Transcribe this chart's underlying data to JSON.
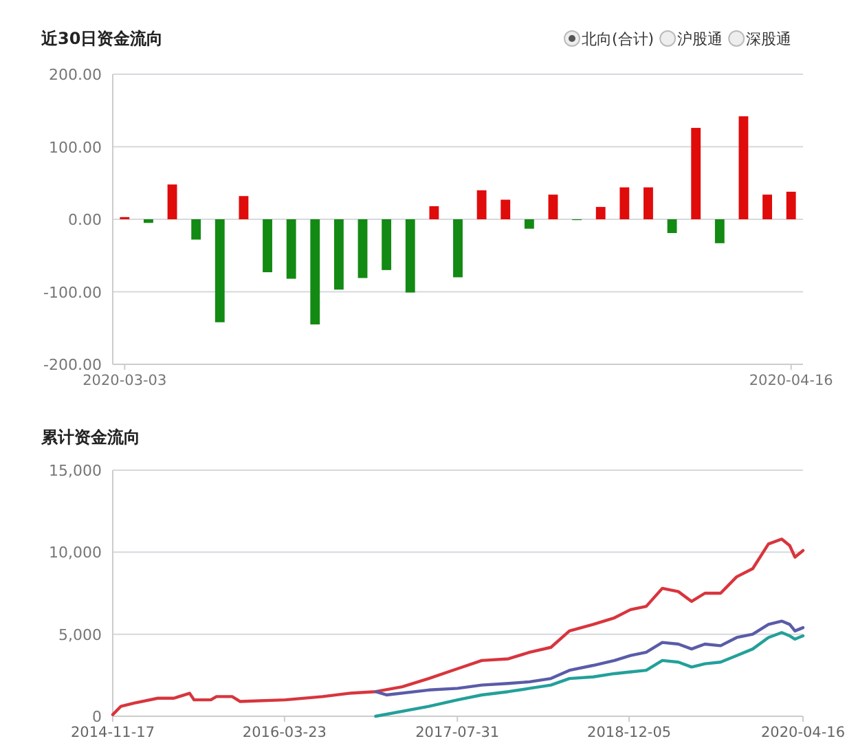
{
  "chart_data": [
    {
      "type": "bar",
      "title": "近30日资金流向",
      "annotations": [
        "北向(合计)",
        "沪股通",
        "深股通"
      ],
      "categories": [
        "2020-03-03",
        null,
        null,
        null,
        null,
        null,
        null,
        null,
        null,
        null,
        null,
        null,
        null,
        null,
        null,
        null,
        null,
        null,
        null,
        null,
        null,
        null,
        null,
        null,
        null,
        null,
        null,
        null,
        "2020-04-16"
      ],
      "values": [
        3,
        -5,
        48,
        -28,
        -142,
        32,
        -73,
        -82,
        -145,
        -97,
        -81,
        -70,
        -101,
        18,
        -80,
        40,
        27,
        -13,
        34,
        -1,
        17,
        44,
        44,
        -19,
        126,
        -33,
        142,
        34,
        38
      ],
      "colors": [
        "#e00b0b",
        "#138a13",
        "#e00b0b",
        "#138a13",
        "#138a13",
        "#e00b0b",
        "#138a13",
        "#138a13",
        "#138a13",
        "#138a13",
        "#138a13",
        "#138a13",
        "#138a13",
        "#e00b0b",
        "#138a13",
        "#e00b0b",
        "#e00b0b",
        "#138a13",
        "#e00b0b",
        "#138a13",
        "#e00b0b",
        "#e00b0b",
        "#e00b0b",
        "#138a13",
        "#e00b0b",
        "#138a13",
        "#e00b0b",
        "#e00b0b",
        "#e00b0b"
      ],
      "ylim": [
        -200,
        200
      ],
      "yticks": [
        {
          "value": 200,
          "label": "200.00"
        },
        {
          "value": 100,
          "label": "100.00"
        },
        {
          "value": 0,
          "label": "0.00"
        },
        {
          "value": -100,
          "label": "-100.00"
        },
        {
          "value": -200,
          "label": "-200.00"
        }
      ],
      "grid": "y"
    },
    {
      "type": "line",
      "title": "累计资金流向",
      "series": [
        {
          "color": "#d8353d",
          "x": [
            "2014-11-17",
            "2014-12-10",
            "2015-01-17",
            "2015-03-26",
            "2015-05-11",
            "2015-06-25",
            "2015-07-08",
            "2015-08-25",
            "2015-09-10",
            "2015-10-25",
            "2015-11-17",
            "2016-03-25",
            "2016-07-10",
            "2016-09-24",
            "2016-12-09",
            "2017-02-23",
            "2017-05-10",
            "2017-08-01",
            "2017-10-09",
            "2017-12-24",
            "2018-02-23",
            "2018-04-25",
            "2018-06-17",
            "2018-08-24",
            "2018-10-24",
            "2018-12-09",
            "2019-01-23",
            "2019-03-10",
            "2019-04-25",
            "2019-06-02",
            "2019-07-10",
            "2019-08-24",
            "2019-10-09",
            "2019-11-24",
            "2020-01-08",
            "2020-02-15",
            "2020-03-09",
            "2020-03-24",
            "2020-04-16"
          ],
          "values": [
            100,
            600,
            800,
            1100,
            1100,
            1400,
            1000,
            1000,
            1200,
            1200,
            900,
            1000,
            1200,
            1400,
            1500,
            1800,
            2300,
            2900,
            3400,
            3500,
            3900,
            4200,
            5200,
            5600,
            6000,
            6500,
            6700,
            7800,
            7600,
            7000,
            7500,
            7500,
            8500,
            9000,
            10500,
            10800,
            10400,
            9700,
            10100
          ]
        },
        {
          "color": "#5a5ca8",
          "x": [
            "2016-12-09",
            "2017-01-09",
            "2017-05-10",
            "2017-08-01",
            "2017-10-09",
            "2017-12-24",
            "2018-02-23",
            "2018-04-25",
            "2018-06-17",
            "2018-08-24",
            "2018-10-24",
            "2018-12-09",
            "2019-01-23",
            "2019-03-10",
            "2019-04-25",
            "2019-06-02",
            "2019-07-10",
            "2019-08-24",
            "2019-10-09",
            "2019-11-24",
            "2020-01-08",
            "2020-02-15",
            "2020-03-09",
            "2020-03-24",
            "2020-04-16"
          ],
          "values": [
            1500,
            1300,
            1600,
            1700,
            1900,
            2000,
            2100,
            2300,
            2800,
            3100,
            3400,
            3700,
            3900,
            4500,
            4400,
            4100,
            4400,
            4300,
            4800,
            5000,
            5600,
            5800,
            5600,
            5200,
            5400
          ]
        },
        {
          "color": "#23a09a",
          "x": [
            "2016-12-09",
            "2017-05-10",
            "2017-08-01",
            "2017-10-09",
            "2017-12-24",
            "2018-02-23",
            "2018-04-25",
            "2018-06-17",
            "2018-08-24",
            "2018-10-24",
            "2018-12-09",
            "2019-01-23",
            "2019-03-10",
            "2019-04-25",
            "2019-06-02",
            "2019-07-10",
            "2019-08-24",
            "2019-10-09",
            "2019-11-24",
            "2020-01-08",
            "2020-02-15",
            "2020-03-09",
            "2020-03-24",
            "2020-04-16"
          ],
          "values": [
            0,
            600,
            1000,
            1300,
            1500,
            1700,
            1900,
            2300,
            2400,
            2600,
            2700,
            2800,
            3400,
            3300,
            3000,
            3200,
            3300,
            3700,
            4100,
            4800,
            5100,
            4900,
            4700,
            4900
          ]
        }
      ],
      "xlim": [
        "2014-11-17",
        "2020-04-16"
      ],
      "xticks": [
        "2014-11-17",
        "2016-03-23",
        "2017-07-31",
        "2018-12-05",
        "2020-04-16"
      ],
      "ylim": [
        0,
        15000
      ],
      "yticks": [
        {
          "value": 0,
          "label": "0"
        },
        {
          "value": 5000,
          "label": "5,000"
        },
        {
          "value": 10000,
          "label": "10,000"
        },
        {
          "value": 15000,
          "label": "15,000"
        }
      ],
      "grid": "y"
    }
  ]
}
